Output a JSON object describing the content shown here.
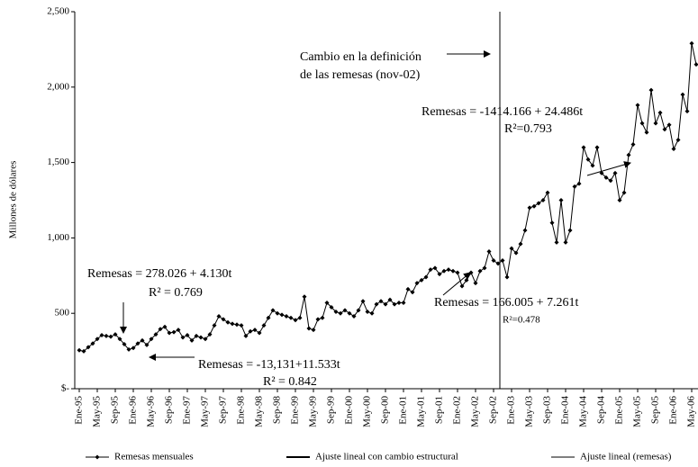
{
  "chart_data": {
    "type": "line",
    "y_label": "Millones de dólares",
    "ylim": [
      0,
      2500
    ],
    "yticks": [
      {
        "value": 0,
        "label": "$-"
      },
      500,
      {
        "value": 1000,
        "label": "1,000"
      },
      {
        "value": 1500,
        "label": "1,500"
      },
      {
        "value": 2000,
        "label": "2,000"
      },
      {
        "value": 2500,
        "label": "2,500"
      }
    ],
    "categories": [
      "Ene-95",
      null,
      null,
      null,
      "May-95",
      null,
      null,
      null,
      "Sep-95",
      null,
      null,
      null,
      "Ene-96",
      null,
      null,
      null,
      "May-96",
      null,
      null,
      null,
      "Sep-96",
      null,
      null,
      null,
      "Ene-97",
      null,
      null,
      null,
      "May-97",
      null,
      null,
      null,
      "Sep-97",
      null,
      null,
      null,
      "Ene-98",
      null,
      null,
      null,
      "May-98",
      null,
      null,
      null,
      "Sep-98",
      null,
      null,
      null,
      "Ene-99",
      null,
      null,
      null,
      "May-99",
      null,
      null,
      null,
      "Sep-99",
      null,
      null,
      null,
      "Ene-00",
      null,
      null,
      null,
      "May-00",
      null,
      null,
      null,
      "Sep-00",
      null,
      null,
      null,
      "Ene-01",
      null,
      null,
      null,
      "May-01",
      null,
      null,
      null,
      "Sep-01",
      null,
      null,
      null,
      "Ene-02",
      null,
      null,
      null,
      "May-02",
      null,
      null,
      null,
      "Sep-02",
      null,
      null,
      null,
      "Ene-03",
      null,
      null,
      null,
      "May-03",
      null,
      null,
      null,
      "Sep-03",
      null,
      null,
      null,
      "Ene-04",
      null,
      null,
      null,
      "May-04",
      null,
      null,
      null,
      "Sep-04",
      null,
      null,
      null,
      "Ene-05",
      null,
      null,
      null,
      "May-05",
      null,
      null,
      null,
      "Sep-05",
      null,
      null,
      null,
      "Ene-06",
      null,
      null,
      null,
      "May-06",
      null
    ],
    "series": [
      {
        "name": "Remesas mensuales",
        "color": "#000000",
        "line_width": 1,
        "markers": true,
        "values": [
          255,
          248,
          275,
          300,
          330,
          355,
          350,
          345,
          360,
          330,
          295,
          260,
          270,
          300,
          320,
          290,
          330,
          360,
          395,
          410,
          370,
          375,
          390,
          340,
          355,
          320,
          350,
          340,
          330,
          360,
          420,
          480,
          460,
          440,
          430,
          425,
          420,
          350,
          380,
          390,
          370,
          420,
          470,
          520,
          500,
          490,
          480,
          470,
          455,
          470,
          610,
          400,
          390,
          460,
          470,
          570,
          540,
          510,
          500,
          520,
          500,
          480,
          520,
          580,
          510,
          500,
          560,
          580,
          560,
          590,
          560,
          570,
          570,
          660,
          640,
          700,
          720,
          740,
          790,
          800,
          760,
          780,
          790,
          780,
          770,
          680,
          720,
          770,
          700,
          780,
          800,
          910,
          850,
          830,
          850,
          740,
          930,
          900,
          960,
          1050,
          1200,
          1210,
          1230,
          1250,
          1300,
          1100,
          970,
          1250,
          970,
          1050,
          1340,
          1360,
          1600,
          1520,
          1480,
          1600,
          1430,
          1400,
          1380,
          1430,
          1250,
          1300,
          1550,
          1620,
          1880,
          1760,
          1700,
          1980,
          1760,
          1830,
          1720,
          1750,
          1590,
          1650,
          1950,
          1840,
          2290,
          2150
        ]
      },
      {
        "name": "Ajuste lineal con cambio estructural",
        "color": "#000000",
        "line_width": 2,
        "markers": false,
        "values": [
          280,
          null,
          null,
          null,
          null,
          null,
          null,
          null,
          null,
          null,
          null,
          null,
          null,
          null,
          null,
          null,
          null,
          null,
          null,
          null,
          null,
          null,
          null,
          null,
          null,
          null,
          null,
          null,
          null,
          null,
          null,
          null,
          null,
          null,
          null,
          null,
          null,
          null,
          null,
          null,
          null,
          null,
          null,
          null,
          null,
          null,
          null,
          null,
          null,
          null,
          null,
          null,
          null,
          null,
          null,
          null,
          null,
          null,
          null,
          null,
          null,
          null,
          null,
          null,
          null,
          null,
          null,
          null,
          null,
          null,
          null,
          null,
          null,
          null,
          null,
          null,
          null,
          null,
          null,
          null,
          null,
          null,
          null,
          null,
          null,
          null,
          null,
          null,
          null,
          null,
          null,
          null,
          null,
          845,
          null,
          937,
          null,
          null,
          null,
          null,
          null,
          null,
          null,
          null,
          null,
          null,
          null,
          null,
          null,
          null,
          null,
          null,
          null,
          null,
          null,
          null,
          null,
          null,
          null,
          null,
          null,
          null,
          null,
          null,
          null,
          null,
          null,
          null,
          null,
          null,
          null,
          null,
          null,
          null,
          null,
          null,
          null,
          1950
        ]
      },
      {
        "name": "Ajuste lineal (remesas)",
        "color": "#000000",
        "line_width": 1,
        "markers": false,
        "values": [
          0,
          null,
          null,
          null,
          null,
          null,
          null,
          null,
          null,
          null,
          null,
          null,
          null,
          null,
          null,
          null,
          null,
          null,
          null,
          null,
          null,
          null,
          null,
          null,
          null,
          null,
          null,
          null,
          null,
          null,
          null,
          null,
          null,
          null,
          null,
          null,
          null,
          null,
          null,
          null,
          null,
          null,
          null,
          null,
          null,
          null,
          null,
          null,
          null,
          null,
          null,
          null,
          null,
          null,
          null,
          null,
          null,
          null,
          null,
          null,
          null,
          null,
          null,
          null,
          null,
          null,
          null,
          null,
          null,
          null,
          null,
          null,
          null,
          null,
          null,
          null,
          null,
          null,
          null,
          null,
          null,
          null,
          null,
          null,
          null,
          null,
          null,
          null,
          null,
          null,
          null,
          null,
          null,
          null,
          null,
          null,
          null,
          null,
          null,
          null,
          null,
          null,
          null,
          null,
          null,
          null,
          null,
          null,
          null,
          null,
          null,
          null,
          null,
          null,
          null,
          null,
          null,
          null,
          null,
          null,
          null,
          null,
          null,
          null,
          null,
          null,
          null,
          null,
          null,
          null,
          null,
          null,
          null,
          null,
          null,
          null,
          null,
          1585
        ]
      }
    ],
    "annotations": [
      {
        "lines": [
          "Cambio en la definición",
          "de las remesas (nov-02)"
        ]
      },
      {
        "lines": [
          "Remesas = -1414.166 + 24.486t",
          "R²=0.793"
        ]
      },
      {
        "lines": [
          "Remesas = 278.026 + 4.130t",
          "R² = 0.769"
        ]
      },
      {
        "lines": [
          "Remesas = 166.005 + 7.261t",
          "R²=0.478"
        ]
      },
      {
        "lines": [
          "Remesas = -13,131+11.533t",
          "R² = 0.842"
        ]
      }
    ]
  }
}
